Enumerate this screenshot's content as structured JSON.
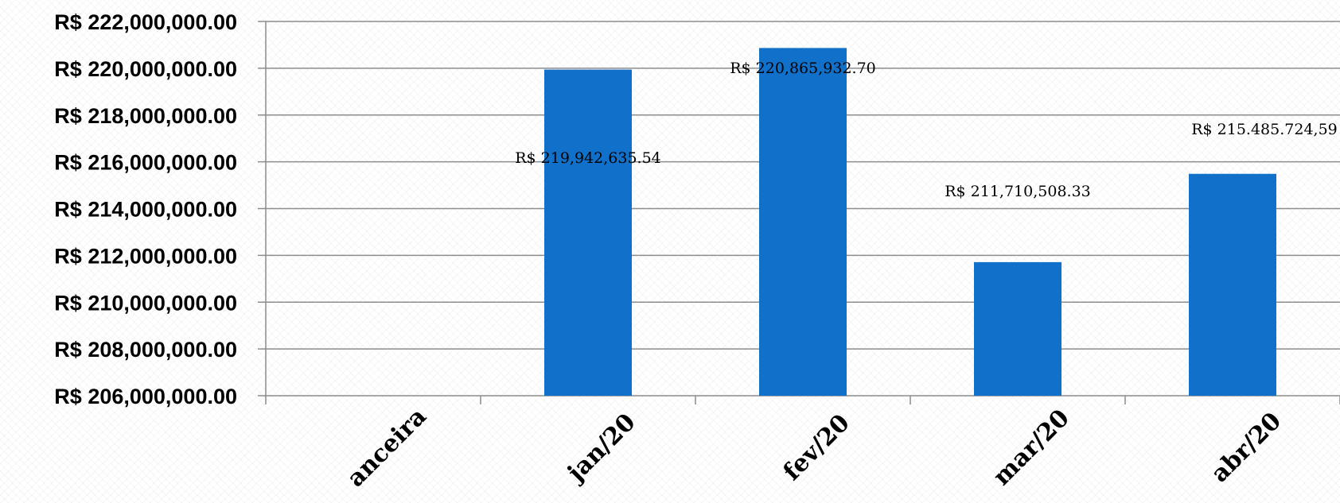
{
  "chart_data": {
    "type": "bar",
    "categories": [
      "anceira",
      "jan/20",
      "fev/20",
      "mar/20",
      "abr/20"
    ],
    "values": [
      null,
      219942635.54,
      220865932.7,
      211710508.33,
      215485724.59
    ],
    "data_labels": [
      "",
      "R$ 219,942,635.54",
      "R$ 220,865,932.70",
      "R$ 211,710,508.33",
      "R$ 215.485.724,59"
    ],
    "y_tick_labels": [
      "R$ 206,000,000.00",
      "R$ 208,000,000.00",
      "R$ 210,000,000.00",
      "R$ 212,000,000.00",
      "R$ 214,000,000.00",
      "R$ 216,000,000.00",
      "R$ 218,000,000.00",
      "R$ 220,000,000.00",
      "R$ 222,000,000.00"
    ],
    "ylim": [
      206000000,
      222000000
    ],
    "y_step": 2000000,
    "grid": true,
    "legend": "none",
    "bar_color": "#1170C9"
  }
}
